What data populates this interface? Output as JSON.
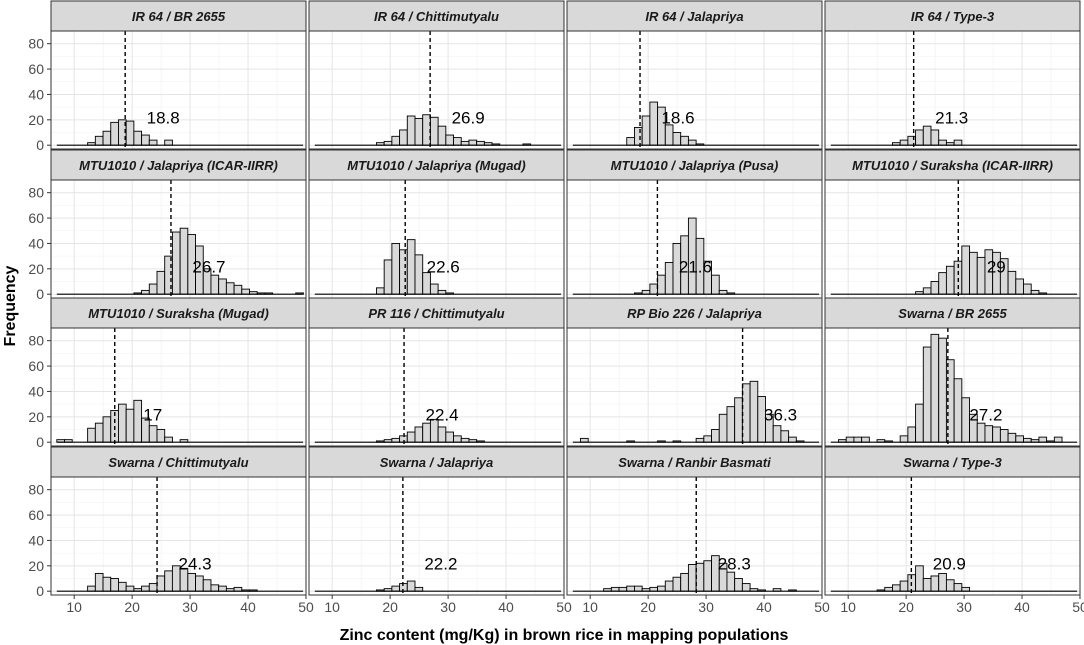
{
  "chart_data": {
    "type": "histogram-facets",
    "xlabel": "Zinc content (mg/Kg) in brown rice in mapping populations",
    "ylabel": "Frequency",
    "xlim": [
      6,
      50
    ],
    "ylim": [
      -3,
      90
    ],
    "bin_start": 7,
    "bin_width": 1.33,
    "x_ticks": [
      "10",
      "20",
      "30",
      "40",
      "50"
    ],
    "y_ticks": [
      "0",
      "20",
      "40",
      "60",
      "80"
    ],
    "x_tick_values": [
      10,
      20,
      30,
      40,
      50
    ],
    "y_tick_values": [
      0,
      20,
      40,
      60,
      80
    ],
    "panels": [
      {
        "title": "IR 64 / BR 2655",
        "mean": 18.8,
        "mean_label": "18.8",
        "counts": [
          0,
          0,
          0,
          0,
          2,
          7,
          11,
          18,
          20,
          19,
          11,
          8,
          4,
          0,
          4,
          0,
          0,
          0,
          0,
          0,
          0,
          0,
          0,
          0,
          0,
          0,
          0,
          0,
          0,
          0,
          0,
          0
        ]
      },
      {
        "title": "IR 64 / Chittimutyalu",
        "mean": 26.9,
        "mean_label": "26.9",
        "counts": [
          0,
          0,
          0,
          0,
          0,
          0,
          0,
          0,
          2,
          3,
          7,
          12,
          23,
          21,
          24,
          22,
          15,
          8,
          6,
          3,
          4,
          3,
          2,
          1,
          0,
          0,
          0,
          1,
          0,
          0,
          0,
          0
        ]
      },
      {
        "title": "IR 64 / Jalapriya",
        "mean": 18.6,
        "mean_label": "18.6",
        "counts": [
          0,
          0,
          0,
          0,
          0,
          0,
          0,
          6,
          14,
          23,
          34,
          30,
          16,
          10,
          7,
          4,
          1,
          0,
          0,
          0,
          0,
          0,
          0,
          0,
          0,
          0,
          0,
          0,
          0,
          0,
          0,
          0
        ]
      },
      {
        "title": "IR 64 / Type-3",
        "mean": 21.3,
        "mean_label": "21.3",
        "counts": [
          0,
          0,
          0,
          0,
          0,
          0,
          0,
          0,
          2,
          4,
          7,
          12,
          15,
          12,
          4,
          2,
          4,
          0,
          0,
          0,
          0,
          0,
          0,
          0,
          0,
          0,
          0,
          0,
          0,
          0,
          0,
          0
        ]
      },
      {
        "title": "MTU1010 / Jalapriya (ICAR-IIRR)",
        "mean": 26.7,
        "mean_label": "26.7",
        "counts": [
          0,
          0,
          0,
          0,
          0,
          0,
          0,
          0,
          0,
          0,
          1,
          3,
          8,
          18,
          30,
          49,
          52,
          47,
          38,
          20,
          15,
          12,
          9,
          7,
          4,
          2,
          1,
          1,
          0,
          0,
          0,
          1
        ]
      },
      {
        "title": "MTU1010 / Jalapriya (Mugad)",
        "mean": 22.6,
        "mean_label": "22.6",
        "counts": [
          0,
          0,
          0,
          0,
          0,
          0,
          0,
          0,
          5,
          27,
          40,
          35,
          43,
          31,
          17,
          8,
          3,
          1,
          0,
          0,
          0,
          0,
          0,
          0,
          0,
          0,
          0,
          0,
          0,
          0,
          0,
          0
        ]
      },
      {
        "title": "MTU1010 / Jalapriya (Pusa)",
        "mean": 21.6,
        "mean_label": "21.6",
        "counts": [
          0,
          0,
          0,
          0,
          0,
          0,
          0,
          0,
          1,
          3,
          8,
          15,
          25,
          40,
          46,
          60,
          44,
          26,
          15,
          3,
          1,
          0,
          0,
          0,
          0,
          0,
          0,
          0,
          0,
          0,
          0,
          0
        ]
      },
      {
        "title": "MTU1010 / Suraksha (ICAR-IIRR)",
        "mean": 29,
        "mean_label": "29",
        "counts": [
          0,
          0,
          0,
          0,
          0,
          0,
          0,
          0,
          0,
          0,
          0,
          2,
          5,
          10,
          17,
          22,
          26,
          38,
          33,
          29,
          35,
          33,
          28,
          18,
          12,
          8,
          3,
          1,
          0,
          0,
          0,
          0
        ]
      },
      {
        "title": "MTU1010 / Suraksha (Mugad)",
        "mean": 17,
        "mean_label": "17",
        "counts": [
          2,
          2,
          0,
          0,
          11,
          15,
          20,
          25,
          30,
          26,
          33,
          19,
          13,
          10,
          4,
          0,
          2,
          0,
          0,
          0,
          0,
          0,
          0,
          0,
          0,
          0,
          0,
          0,
          0,
          0,
          0,
          0
        ]
      },
      {
        "title": "PR 116 / Chittimutyalu",
        "mean": 22.4,
        "mean_label": "22.4",
        "counts": [
          0,
          0,
          0,
          0,
          0,
          0,
          0,
          0,
          1,
          2,
          3,
          5,
          8,
          12,
          15,
          18,
          12,
          8,
          5,
          3,
          2,
          1,
          0,
          0,
          0,
          0,
          0,
          0,
          0,
          0,
          0,
          0
        ]
      },
      {
        "title": "RP Bio 226 / Jalapriya",
        "mean": 36.3,
        "mean_label": "36.3",
        "counts": [
          0,
          3,
          0,
          0,
          0,
          0,
          0,
          1,
          0,
          0,
          0,
          1,
          0,
          1,
          0,
          0,
          3,
          5,
          10,
          22,
          28,
          35,
          46,
          48,
          36,
          22,
          13,
          9,
          4,
          1,
          0,
          0
        ]
      },
      {
        "title": "Swarna / BR 2655",
        "mean": 27.2,
        "mean_label": "27.2",
        "counts": [
          0,
          2,
          4,
          4,
          4,
          0,
          2,
          1,
          0,
          5,
          12,
          30,
          75,
          85,
          82,
          65,
          50,
          35,
          22,
          15,
          13,
          12,
          10,
          7,
          5,
          3,
          2,
          4,
          1,
          4,
          0,
          0
        ]
      },
      {
        "title": "Swarna / Chittimutyalu",
        "mean": 24.3,
        "mean_label": "24.3",
        "counts": [
          0,
          0,
          0,
          0,
          4,
          14,
          11,
          10,
          7,
          4,
          2,
          4,
          6,
          12,
          16,
          20,
          18,
          14,
          12,
          9,
          5,
          4,
          2,
          3,
          1,
          1,
          0,
          0,
          0,
          0,
          0,
          0
        ]
      },
      {
        "title": "Swarna / Jalapriya",
        "mean": 22.2,
        "mean_label": "22.2",
        "counts": [
          0,
          0,
          0,
          0,
          0,
          0,
          0,
          0,
          1,
          2,
          4,
          6,
          8,
          3,
          0,
          0,
          0,
          0,
          0,
          0,
          0,
          0,
          0,
          0,
          0,
          0,
          0,
          0,
          0,
          0,
          0,
          0
        ]
      },
      {
        "title": "Swarna / Ranbir Basmati",
        "mean": 28.3,
        "mean_label": "28.3",
        "counts": [
          0,
          0,
          0,
          0,
          2,
          3,
          3,
          4,
          4,
          2,
          3,
          4,
          8,
          11,
          14,
          21,
          22,
          24,
          28,
          22,
          15,
          10,
          6,
          2,
          1,
          0,
          2,
          0,
          1,
          0,
          0,
          0
        ]
      },
      {
        "title": "Swarna / Type-3",
        "mean": 20.9,
        "mean_label": "20.9",
        "counts": [
          0,
          0,
          0,
          0,
          0,
          0,
          1,
          3,
          5,
          8,
          13,
          20,
          10,
          12,
          14,
          9,
          6,
          3,
          0,
          0,
          0,
          0,
          0,
          0,
          0,
          0,
          0,
          0,
          0,
          0,
          0,
          0
        ]
      }
    ]
  }
}
